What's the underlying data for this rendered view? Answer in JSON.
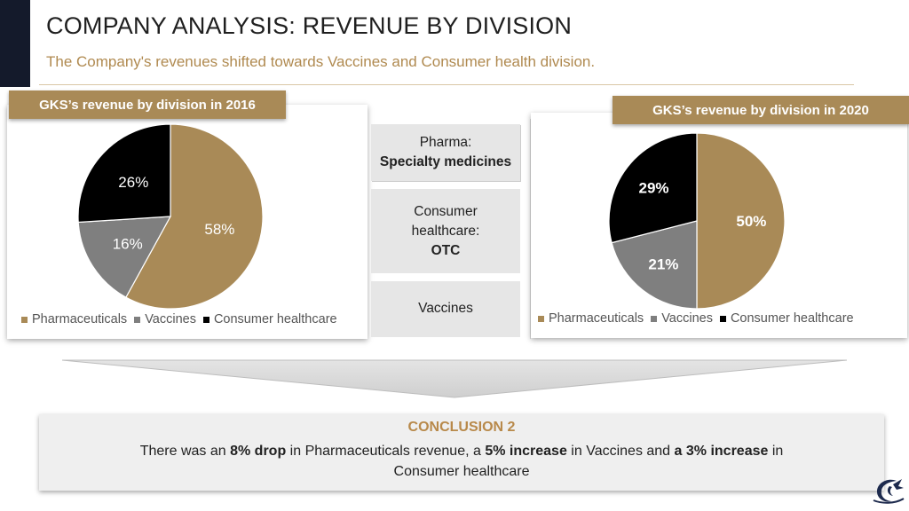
{
  "header": {
    "title": "COMPANY ANALYSIS: REVENUE BY DIVISION",
    "subtitle": "The Company's revenues shifted towards Vaccines and Consumer health division."
  },
  "panels": {
    "left_title": "GKS’s revenue by division in 2016",
    "right_title": "GKS’s revenue by division in 2020"
  },
  "legend": {
    "items": [
      "Pharmaceuticals",
      "Vaccines",
      "Consumer healthcare"
    ]
  },
  "middle": {
    "pharma_line1": "Pharma:",
    "pharma_line2": "Specialty medicines",
    "consumer_line1": "Consumer",
    "consumer_line2": "healthcare:",
    "consumer_line3": "OTC",
    "vaccines": "Vaccines"
  },
  "conclusion": {
    "title": "CONCLUSION 2",
    "p1": "There was an ",
    "b1": "8% drop",
    "p2": " in Pharmaceuticals revenue, a ",
    "b2": "5% increase",
    "p3": " in Vaccines and ",
    "b3": "a 3% increase",
    "p4": " in Consumer healthcare"
  },
  "colors": {
    "pharmaceuticals": "#a98a57",
    "vaccines": "#7f7f7f",
    "consumer_healthcare": "#000000",
    "accent": "#b08a50",
    "dark_bar": "#141a2b"
  },
  "chart_data": [
    {
      "type": "pie",
      "title": "GKS’s revenue by division in 2016",
      "categories": [
        "Pharmaceuticals",
        "Vaccines",
        "Consumer healthcare"
      ],
      "values": [
        58,
        16,
        26
      ],
      "labels": [
        "58%",
        "16%",
        "26%"
      ],
      "legend_position": "bottom"
    },
    {
      "type": "pie",
      "title": "GKS’s revenue by division in 2020",
      "categories": [
        "Pharmaceuticals",
        "Vaccines",
        "Consumer healthcare"
      ],
      "values": [
        50,
        21,
        29
      ],
      "labels": [
        "50%",
        "21%",
        "29%"
      ],
      "legend_position": "bottom"
    }
  ]
}
